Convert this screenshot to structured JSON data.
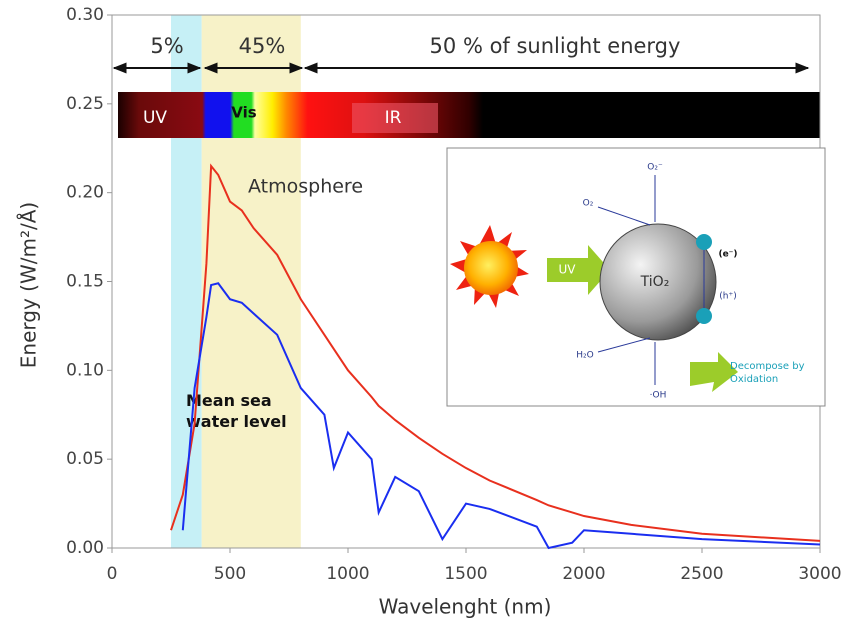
{
  "chart_data": {
    "type": "line",
    "xlabel": "Wavelenght (nm)",
    "ylabel": "Energy  (W/m²/Å)",
    "x": [
      250,
      300,
      350,
      400,
      420,
      450,
      500,
      550,
      600,
      700,
      800,
      900,
      940,
      1000,
      1100,
      1130,
      1200,
      1300,
      1400,
      1500,
      1600,
      1800,
      1850,
      1950,
      2000,
      2200,
      2500,
      3000
    ],
    "series": [
      {
        "name": "Atmosphere",
        "color": "#e8301e",
        "values": [
          0.01,
          0.03,
          0.07,
          0.16,
          0.215,
          0.21,
          0.195,
          0.19,
          0.18,
          0.165,
          0.14,
          0.12,
          0.112,
          0.1,
          0.085,
          0.08,
          0.072,
          0.062,
          0.053,
          0.045,
          0.038,
          0.027,
          0.024,
          0.02,
          0.018,
          0.013,
          0.008,
          0.004
        ]
      },
      {
        "name": "Mean sea water level",
        "color": "#1a2ef0",
        "values": [
          null,
          0.01,
          0.09,
          0.13,
          0.148,
          0.149,
          0.14,
          0.138,
          0.132,
          0.12,
          0.09,
          0.075,
          0.045,
          0.065,
          0.05,
          0.02,
          0.04,
          0.032,
          0.005,
          0.025,
          0.022,
          0.012,
          0.0,
          0.003,
          0.01,
          0.008,
          0.005,
          0.002
        ]
      }
    ],
    "bands": [
      {
        "from": 250,
        "to": 380,
        "color": "#c6f0f6"
      },
      {
        "from": 380,
        "to": 800,
        "color": "#f7f2c8"
      }
    ],
    "xlim": [
      0,
      3000
    ],
    "ylim": [
      0,
      0.3
    ],
    "xticks": [
      0,
      500,
      1000,
      1500,
      2000,
      2500,
      3000
    ],
    "yticks": [
      {
        "value": 0,
        "label": "0.00"
      },
      {
        "value": 0.05,
        "label": "0.05"
      },
      {
        "value": 0.1,
        "label": "0.10"
      },
      {
        "value": 0.15,
        "label": "0.15"
      },
      {
        "value": 0.2,
        "label": "0.20"
      },
      {
        "value": 0.25,
        "label": "0.25"
      },
      {
        "value": 0.3,
        "label": "0.30"
      }
    ],
    "annotations": {
      "uv_share": "5%",
      "vis_share": "45%",
      "ir_share": "50 % of sunlight energy",
      "uv": "UV",
      "vis": "Vis",
      "ir": "IR"
    },
    "inset": {
      "o2_minus": "O₂⁻",
      "o2": "O₂",
      "electron": "(e⁻)",
      "catalyst": "TiO₂",
      "hole": "(h⁺)",
      "h2o": "H₂O",
      "oh": "·OH",
      "light": "UV",
      "result": "Decompose by Oxidation"
    }
  }
}
